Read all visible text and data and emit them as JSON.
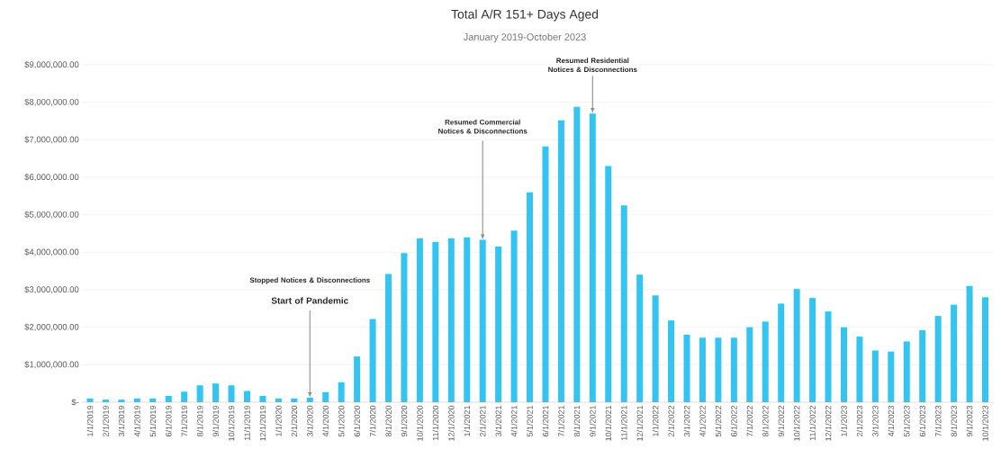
{
  "chart_data": {
    "type": "bar",
    "title": "Total A/R 151+ Days Aged",
    "subtitle": "January 2019-October 2023",
    "categories": [
      "1/1/2019",
      "2/1/2019",
      "3/1/2019",
      "4/1/2019",
      "5/1/2019",
      "6/1/2019",
      "7/1/2019",
      "8/1/2019",
      "9/1/2019",
      "10/1/2019",
      "11/1/2019",
      "12/1/2019",
      "1/1/2020",
      "2/1/2020",
      "3/1/2020",
      "4/1/2020",
      "5/1/2020",
      "6/1/2020",
      "7/1/2020",
      "8/1/2020",
      "9/1/2020",
      "10/1/2020",
      "11/1/2020",
      "12/1/2020",
      "1/1/2021",
      "2/1/2021",
      "3/1/2021",
      "4/1/2021",
      "5/1/2021",
      "6/1/2021",
      "7/1/2021",
      "8/1/2021",
      "9/1/2021",
      "10/1/2021",
      "11/1/2021",
      "12/1/2021",
      "1/1/2022",
      "2/1/2022",
      "3/1/2022",
      "4/1/2022",
      "5/1/2022",
      "6/1/2022",
      "7/1/2022",
      "8/1/2022",
      "9/1/2022",
      "10/1/2022",
      "11/1/2022",
      "12/1/2022",
      "1/1/2023",
      "2/1/2023",
      "3/1/2023",
      "4/1/2023",
      "5/1/2023",
      "6/1/2023",
      "7/1/2023",
      "8/1/2023",
      "9/1/2023",
      "10/1/2023"
    ],
    "values": [
      100000,
      70000,
      70000,
      100000,
      100000,
      170000,
      280000,
      450000,
      500000,
      450000,
      300000,
      170000,
      100000,
      100000,
      120000,
      270000,
      530000,
      1220000,
      2220000,
      3420000,
      3980000,
      4370000,
      4270000,
      4370000,
      4400000,
      4330000,
      4150000,
      4580000,
      5600000,
      6820000,
      7520000,
      7880000,
      7700000,
      6300000,
      5250000,
      3400000,
      2850000,
      2180000,
      1800000,
      1720000,
      1720000,
      1720000,
      2000000,
      2150000,
      2630000,
      3020000,
      2780000,
      2420000,
      2000000,
      1750000,
      1380000,
      1350000,
      1620000,
      1920000,
      2300000,
      2600000,
      3100000,
      2800000
    ],
    "color": "#33c4f2",
    "ylim": [
      0,
      9000000
    ],
    "yticks": [
      {
        "value": 0,
        "label": "$-"
      },
      {
        "value": 1000000,
        "label": "$1,000,000.00"
      },
      {
        "value": 2000000,
        "label": "$2,000,000.00"
      },
      {
        "value": 3000000,
        "label": "$3,000,000.00"
      },
      {
        "value": 4000000,
        "label": "$4,000,000.00"
      },
      {
        "value": 5000000,
        "label": "$5,000,000.00"
      },
      {
        "value": 6000000,
        "label": "$6,000,000.00"
      },
      {
        "value": 7000000,
        "label": "$7,000,000.00"
      },
      {
        "value": 8000000,
        "label": "$8,000,000.00"
      },
      {
        "value": 9000000,
        "label": "$9,000,000.00"
      }
    ],
    "grid": "y",
    "annotations": [
      "Stopped Notices & Disconnections",
      {
        "text": "Start of Pandemic",
        "x": "3/1/2020",
        "y": 120000
      },
      {
        "text": "Resumed Commercial Notices & Disconnections",
        "x": "2/1/2021",
        "y": 4330000
      },
      {
        "text": "Resumed Residential Notices & Disconnections",
        "x": "9/1/2021",
        "y": 7700000
      }
    ]
  }
}
